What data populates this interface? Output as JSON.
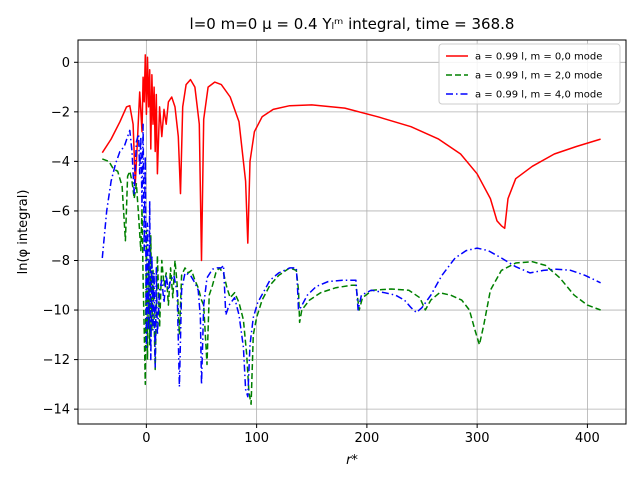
{
  "chart_data": {
    "type": "line",
    "title": "l=0 m=0 μ = 0.4 Yₗᵐ integral, time = 368.8",
    "xlabel": "r*",
    "ylabel": "ln(φ integral)",
    "xlim": [
      -62,
      435
    ],
    "ylim": [
      -14.6,
      0.9
    ],
    "xticks": [
      0,
      100,
      200,
      300,
      400
    ],
    "yticks": [
      -14,
      -12,
      -10,
      -8,
      -6,
      -4,
      -2,
      0
    ],
    "grid": true,
    "legend_position": "top-right",
    "series": [
      {
        "name": "a = 0.99 l, m = 0,0 mode",
        "color": "#ff0000",
        "style": "solid",
        "points": [
          [
            -40,
            -3.65
          ],
          [
            -32,
            -3.1
          ],
          [
            -24,
            -2.4
          ],
          [
            -18,
            -1.8
          ],
          [
            -15,
            -1.75
          ],
          [
            -12,
            -2.5
          ],
          [
            -10,
            -4.9
          ],
          [
            -8,
            -3.1
          ],
          [
            -6,
            -1.2
          ],
          [
            -4,
            -2.8
          ],
          [
            -3,
            -0.6
          ],
          [
            -2,
            -1.6
          ],
          [
            -1,
            0.3
          ],
          [
            0,
            -2.1
          ],
          [
            1,
            0.2
          ],
          [
            2,
            -1.8
          ],
          [
            3,
            -0.3
          ],
          [
            4,
            -3.5
          ],
          [
            5,
            -0.5
          ],
          [
            6,
            -2.5
          ],
          [
            7,
            -1.0
          ],
          [
            8,
            -3.6
          ],
          [
            9,
            -1.3
          ],
          [
            10,
            -4.5
          ],
          [
            12,
            -1.8
          ],
          [
            14,
            -3.0
          ],
          [
            16,
            -1.9
          ],
          [
            18,
            -2.5
          ],
          [
            20,
            -1.6
          ],
          [
            23,
            -1.4
          ],
          [
            26,
            -1.8
          ],
          [
            29,
            -3.0
          ],
          [
            31,
            -5.3
          ],
          [
            33,
            -1.8
          ],
          [
            36,
            -0.9
          ],
          [
            40,
            -0.7
          ],
          [
            44,
            -1.0
          ],
          [
            48,
            -2.5
          ],
          [
            50,
            -8.0
          ],
          [
            52,
            -2.3
          ],
          [
            56,
            -1.0
          ],
          [
            62,
            -0.8
          ],
          [
            68,
            -0.9
          ],
          [
            76,
            -1.4
          ],
          [
            84,
            -2.4
          ],
          [
            90,
            -4.8
          ],
          [
            92,
            -7.3
          ],
          [
            94,
            -4.0
          ],
          [
            98,
            -2.8
          ],
          [
            105,
            -2.2
          ],
          [
            115,
            -1.9
          ],
          [
            130,
            -1.75
          ],
          [
            150,
            -1.72
          ],
          [
            180,
            -1.85
          ],
          [
            210,
            -2.2
          ],
          [
            240,
            -2.6
          ],
          [
            265,
            -3.1
          ],
          [
            285,
            -3.7
          ],
          [
            300,
            -4.5
          ],
          [
            312,
            -5.5
          ],
          [
            318,
            -6.4
          ],
          [
            322,
            -6.6
          ],
          [
            325,
            -6.7
          ],
          [
            328,
            -5.5
          ],
          [
            335,
            -4.7
          ],
          [
            350,
            -4.2
          ],
          [
            370,
            -3.7
          ],
          [
            390,
            -3.4
          ],
          [
            412,
            -3.1
          ]
        ]
      },
      {
        "name": "a = 0.99 l, m = 2,0 mode",
        "color": "#008000",
        "style": "dashed",
        "points": [
          [
            -40,
            -3.9
          ],
          [
            -34,
            -4.0
          ],
          [
            -30,
            -4.3
          ],
          [
            -26,
            -4.4
          ],
          [
            -22,
            -5.0
          ],
          [
            -19,
            -7.2
          ],
          [
            -17,
            -4.6
          ],
          [
            -15,
            -4.4
          ],
          [
            -13,
            -4.8
          ],
          [
            -11,
            -5.5
          ],
          [
            -9,
            -4.9
          ],
          [
            -7,
            -6.2
          ],
          [
            -5,
            -7.6
          ],
          [
            -4,
            -5.9
          ],
          [
            -3,
            -8.7
          ],
          [
            -2,
            -10.8
          ],
          [
            -1,
            -13.0
          ],
          [
            0,
            -6.8
          ],
          [
            1,
            -12.0
          ],
          [
            2,
            -8.0
          ],
          [
            3,
            -11.4
          ],
          [
            4,
            -7.0
          ],
          [
            5,
            -10.8
          ],
          [
            6,
            -8.4
          ],
          [
            8,
            -12.4
          ],
          [
            10,
            -7.8
          ],
          [
            12,
            -10.7
          ],
          [
            14,
            -8.0
          ],
          [
            16,
            -9.0
          ],
          [
            18,
            -8.5
          ],
          [
            20,
            -9.8
          ],
          [
            22,
            -8.3
          ],
          [
            24,
            -9.5
          ],
          [
            26,
            -8.0
          ],
          [
            28,
            -9.0
          ],
          [
            30,
            -11.0
          ],
          [
            32,
            -8.6
          ],
          [
            35,
            -8.3
          ],
          [
            38,
            -8.5
          ],
          [
            41,
            -8.4
          ],
          [
            44,
            -8.8
          ],
          [
            47,
            -9.1
          ],
          [
            50,
            -9.6
          ],
          [
            52,
            -9.8
          ],
          [
            55,
            -12.2
          ],
          [
            57,
            -9.4
          ],
          [
            60,
            -9.0
          ],
          [
            63,
            -8.5
          ],
          [
            66,
            -8.3
          ],
          [
            70,
            -8.5
          ],
          [
            73,
            -9.1
          ],
          [
            76,
            -9.5
          ],
          [
            80,
            -9.3
          ],
          [
            84,
            -9.7
          ],
          [
            88,
            -10.4
          ],
          [
            91,
            -11.8
          ],
          [
            93,
            -13.3
          ],
          [
            95,
            -13.8
          ],
          [
            97,
            -11.0
          ],
          [
            100,
            -10.3
          ],
          [
            105,
            -9.6
          ],
          [
            112,
            -9.0
          ],
          [
            120,
            -8.6
          ],
          [
            130,
            -8.3
          ],
          [
            136,
            -8.4
          ],
          [
            138,
            -9.2
          ],
          [
            139,
            -10.5
          ],
          [
            141,
            -10.0
          ],
          [
            148,
            -9.6
          ],
          [
            158,
            -9.3
          ],
          [
            172,
            -9.1
          ],
          [
            186,
            -9.0
          ],
          [
            190,
            -9.0
          ],
          [
            193,
            -10.0
          ],
          [
            196,
            -9.5
          ],
          [
            205,
            -9.2
          ],
          [
            222,
            -9.15
          ],
          [
            238,
            -9.2
          ],
          [
            248,
            -9.5
          ],
          [
            253,
            -10.0
          ],
          [
            258,
            -9.6
          ],
          [
            266,
            -9.3
          ],
          [
            276,
            -9.4
          ],
          [
            286,
            -9.6
          ],
          [
            293,
            -10.0
          ],
          [
            298,
            -10.8
          ],
          [
            302,
            -11.4
          ],
          [
            306,
            -10.6
          ],
          [
            312,
            -9.2
          ],
          [
            322,
            -8.4
          ],
          [
            335,
            -8.1
          ],
          [
            350,
            -8.05
          ],
          [
            362,
            -8.2
          ],
          [
            375,
            -8.7
          ],
          [
            388,
            -9.4
          ],
          [
            400,
            -9.8
          ],
          [
            412,
            -10.0
          ]
        ]
      },
      {
        "name": "a = 0.99 l, m = 4,0 mode",
        "color": "#0000ff",
        "style": "dashdot",
        "points": [
          [
            -40,
            -7.9
          ],
          [
            -36,
            -6.0
          ],
          [
            -32,
            -4.8
          ],
          [
            -28,
            -4.1
          ],
          [
            -24,
            -3.6
          ],
          [
            -20,
            -3.4
          ],
          [
            -17,
            -3.0
          ],
          [
            -15,
            -2.75
          ],
          [
            -13,
            -3.6
          ],
          [
            -11,
            -5.3
          ],
          [
            -9,
            -3.2
          ],
          [
            -7,
            -2.9
          ],
          [
            -6,
            -4.5
          ],
          [
            -5,
            -3.0
          ],
          [
            -4,
            -5.8
          ],
          [
            -3,
            -2.5
          ],
          [
            -2,
            -7.6
          ],
          [
            -1,
            -3.8
          ],
          [
            0,
            -11.5
          ],
          [
            1,
            -6.5
          ],
          [
            2,
            -10.8
          ],
          [
            3,
            -5.6
          ],
          [
            4,
            -12.0
          ],
          [
            5,
            -7.8
          ],
          [
            6,
            -10.8
          ],
          [
            7,
            -8.5
          ],
          [
            8,
            -12.3
          ],
          [
            9,
            -8.3
          ],
          [
            10,
            -11.0
          ],
          [
            12,
            -9.2
          ],
          [
            14,
            -8.8
          ],
          [
            16,
            -9.7
          ],
          [
            18,
            -8.6
          ],
          [
            20,
            -9.2
          ],
          [
            22,
            -8.8
          ],
          [
            25,
            -8.6
          ],
          [
            28,
            -9.3
          ],
          [
            30,
            -13.1
          ],
          [
            32,
            -9.2
          ],
          [
            35,
            -8.5
          ],
          [
            40,
            -8.6
          ],
          [
            44,
            -8.9
          ],
          [
            47,
            -9.2
          ],
          [
            49,
            -10.3
          ],
          [
            50,
            -13.0
          ],
          [
            52,
            -9.8
          ],
          [
            55,
            -8.7
          ],
          [
            60,
            -8.35
          ],
          [
            64,
            -8.3
          ],
          [
            68,
            -8.3
          ],
          [
            70,
            -8.2
          ],
          [
            72,
            -10.2
          ],
          [
            75,
            -9.8
          ],
          [
            80,
            -9.5
          ],
          [
            84,
            -10.2
          ],
          [
            88,
            -11.5
          ],
          [
            90,
            -13.2
          ],
          [
            92,
            -13.5
          ],
          [
            94,
            -11.4
          ],
          [
            97,
            -10.3
          ],
          [
            101,
            -9.7
          ],
          [
            106,
            -9.3
          ],
          [
            112,
            -8.8
          ],
          [
            120,
            -8.5
          ],
          [
            130,
            -8.3
          ],
          [
            136,
            -8.3
          ],
          [
            137,
            -9.0
          ],
          [
            138,
            -10.0
          ],
          [
            140,
            -9.9
          ],
          [
            146,
            -9.4
          ],
          [
            154,
            -9.05
          ],
          [
            165,
            -8.85
          ],
          [
            178,
            -8.8
          ],
          [
            190,
            -8.8
          ],
          [
            192,
            -10.0
          ],
          [
            195,
            -9.4
          ],
          [
            204,
            -9.2
          ],
          [
            216,
            -9.3
          ],
          [
            226,
            -9.4
          ],
          [
            234,
            -9.6
          ],
          [
            240,
            -9.9
          ],
          [
            245,
            -10.1
          ],
          [
            250,
            -9.9
          ],
          [
            258,
            -9.4
          ],
          [
            268,
            -8.6
          ],
          [
            280,
            -7.9
          ],
          [
            290,
            -7.6
          ],
          [
            300,
            -7.5
          ],
          [
            310,
            -7.6
          ],
          [
            322,
            -7.9
          ],
          [
            335,
            -8.25
          ],
          [
            348,
            -8.5
          ],
          [
            360,
            -8.4
          ],
          [
            372,
            -8.35
          ],
          [
            385,
            -8.4
          ],
          [
            398,
            -8.6
          ],
          [
            412,
            -8.9
          ]
        ]
      }
    ]
  }
}
